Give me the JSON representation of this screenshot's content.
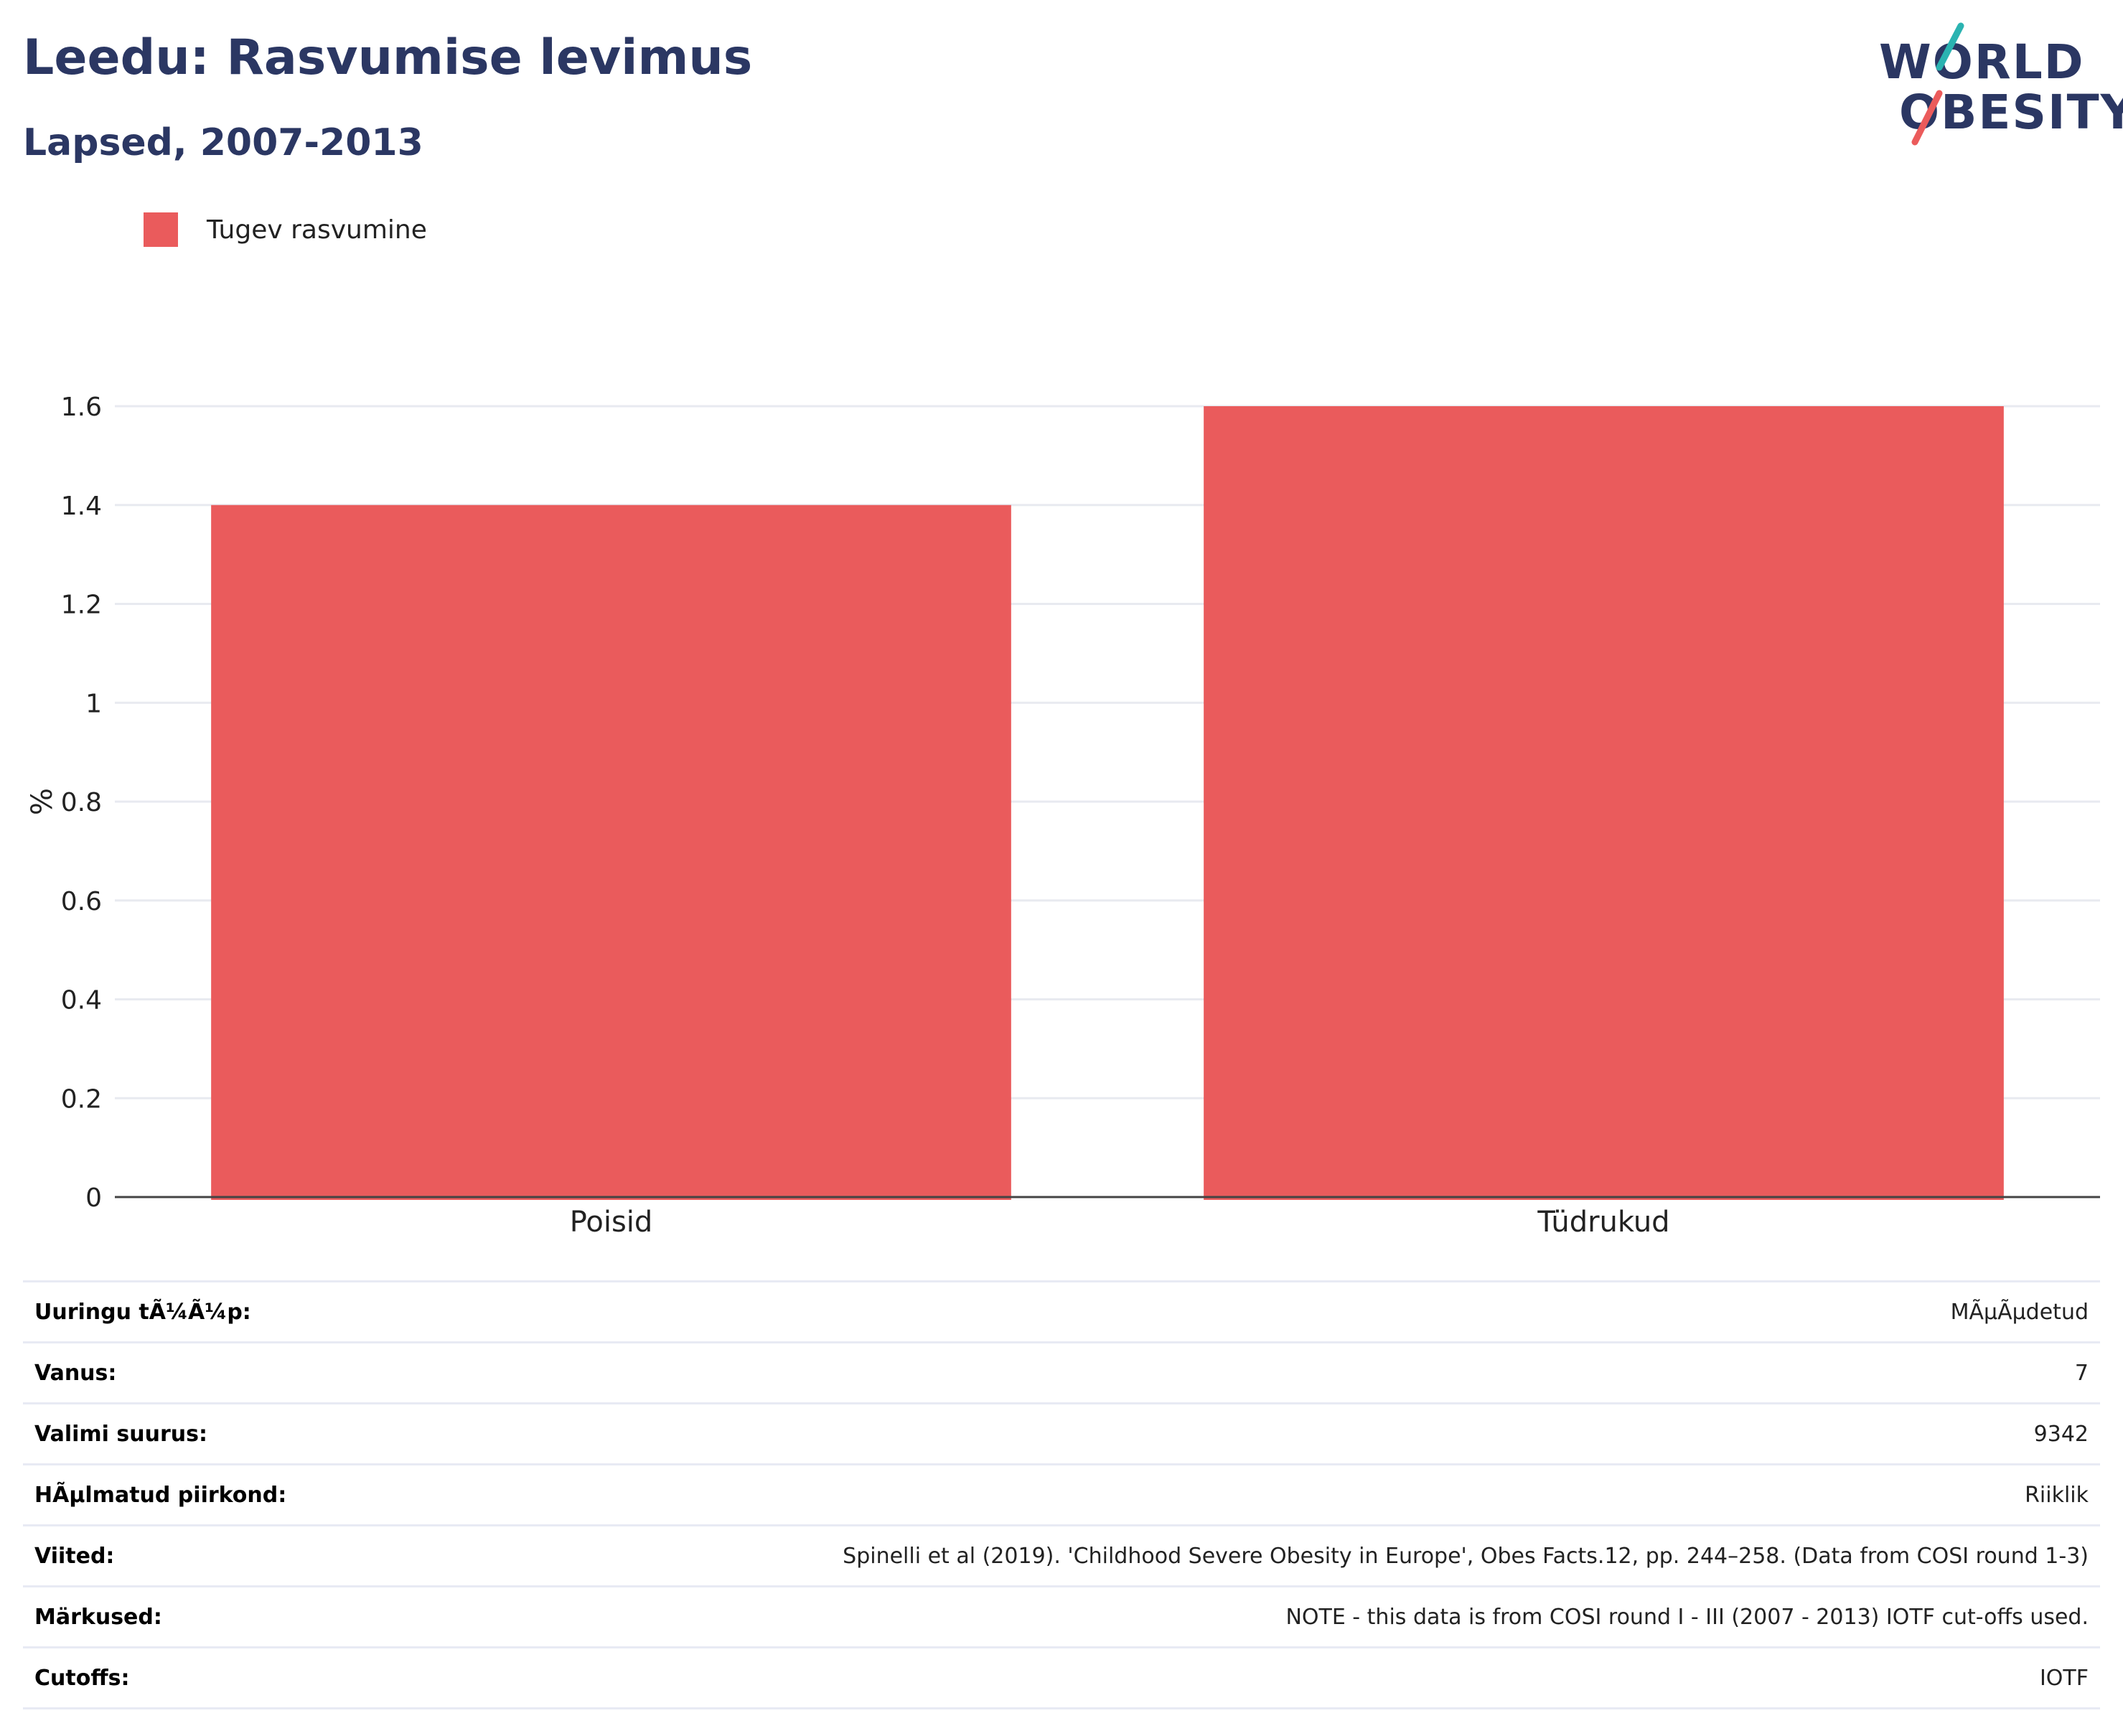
{
  "title": "Leedu: Rasvumise levimus",
  "subtitle": "Lapsed, 2007-2013",
  "logo": {
    "line1": "WORLD",
    "line2": "OBESITY",
    "accent_teal": "#2bb3b1",
    "accent_red": "#eb5b5b"
  },
  "chart_data": {
    "type": "bar",
    "title": "Leedu: Rasvumise levimus",
    "subtitle": "Lapsed, 2007-2013",
    "categories": [
      "Poisid",
      "Tüdrukud"
    ],
    "series": [
      {
        "name": "Tugev rasvumine",
        "color": "#ea5b5c",
        "values": [
          1.4,
          1.6
        ]
      }
    ],
    "ylabel": "%",
    "xlabel": "",
    "ylim": [
      0,
      1.6
    ],
    "yticks": [
      "0",
      "0.2",
      "0.4",
      "0.6",
      "0.8",
      "1",
      "1.2",
      "1.4",
      "1.6"
    ],
    "grid": true,
    "legend_position": "top-left"
  },
  "info": [
    {
      "key": "Uuringu tÃ¼Ã¼p:",
      "value": "MÃµÃµdetud"
    },
    {
      "key": "Vanus:",
      "value": "7"
    },
    {
      "key": "Valimi suurus:",
      "value": "9342"
    },
    {
      "key": "HÃµlmatud piirkond:",
      "value": "Riiklik"
    },
    {
      "key": "Viited:",
      "value": "Spinelli et al (2019). 'Childhood Severe Obesity in Europe', Obes Facts.12, pp. 244–258. (Data from COSI round 1-3)"
    },
    {
      "key": "Märkused:",
      "value": "NOTE - this data is from COSI round I - III (2007 - 2013) IOTF cut-offs used."
    },
    {
      "key": "Cutoffs:",
      "value": "IOTF"
    }
  ]
}
